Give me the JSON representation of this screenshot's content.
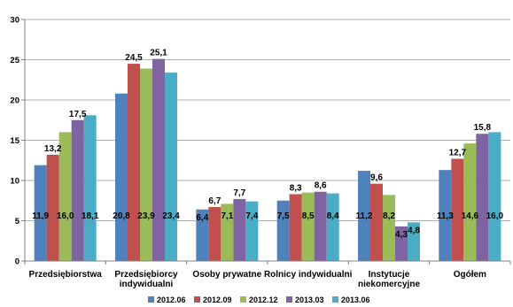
{
  "chart_data": {
    "type": "bar",
    "categories": [
      [
        "Przedsiębiorstwa"
      ],
      [
        "Przedsiębiorcy",
        "indywidualni"
      ],
      [
        "Osoby prywatne"
      ],
      [
        "Rolnicy indywidualni"
      ],
      [
        "Instytucje",
        "niekomercyjne"
      ],
      [
        "Ogółem"
      ]
    ],
    "series": [
      {
        "name": "2012.06",
        "color": "#4F81BD",
        "values": [
          11.9,
          20.8,
          6.4,
          7.5,
          11.2,
          11.3
        ]
      },
      {
        "name": "2012.09",
        "color": "#C0504D",
        "values": [
          13.2,
          24.5,
          6.7,
          8.3,
          9.6,
          12.7
        ]
      },
      {
        "name": "2012.12",
        "color": "#9BBB59",
        "values": [
          16.0,
          23.9,
          7.1,
          8.5,
          8.2,
          14.6
        ]
      },
      {
        "name": "2013.03",
        "color": "#8064A2",
        "values": [
          17.5,
          25.1,
          7.7,
          8.6,
          4.3,
          15.8
        ]
      },
      {
        "name": "2013.06",
        "color": "#4BACC6",
        "values": [
          18.1,
          23.4,
          7.4,
          8.4,
          4.8,
          16.0
        ]
      }
    ],
    "data_labels": [
      [
        "11,9",
        "13,2",
        "16,0",
        "17,5",
        "18,1"
      ],
      [
        "20,8",
        "24,5",
        "23,9",
        "25,1",
        "23,4"
      ],
      [
        "6,4",
        "6,7",
        "7,1",
        "7,7",
        "7,4"
      ],
      [
        "7,5",
        "8,3",
        "8,5",
        "8,6",
        "8,4"
      ],
      [
        "11,2",
        "9,6",
        "8,2",
        "4,3",
        "4,8"
      ],
      [
        "11,3",
        "12,7",
        "14,6",
        "15,8",
        "16,0"
      ]
    ],
    "label_positions": [
      [
        "low",
        "top",
        "low",
        "top",
        "low"
      ],
      [
        "low",
        "top",
        "low",
        "top",
        "low"
      ],
      [
        "low",
        "top",
        "low",
        "top",
        "low"
      ],
      [
        "low",
        "top",
        "low",
        "top",
        "low"
      ],
      [
        "low",
        "top",
        "low",
        "low",
        "low"
      ],
      [
        "low",
        "top",
        "low",
        "top",
        "low"
      ]
    ],
    "y_ticks": [
      "0",
      "5",
      "10",
      "15",
      "20",
      "25",
      "30"
    ],
    "ylim": [
      0,
      30
    ],
    "grid": true,
    "legend_position": "bottom",
    "title": "",
    "xlabel": "",
    "ylabel": ""
  }
}
